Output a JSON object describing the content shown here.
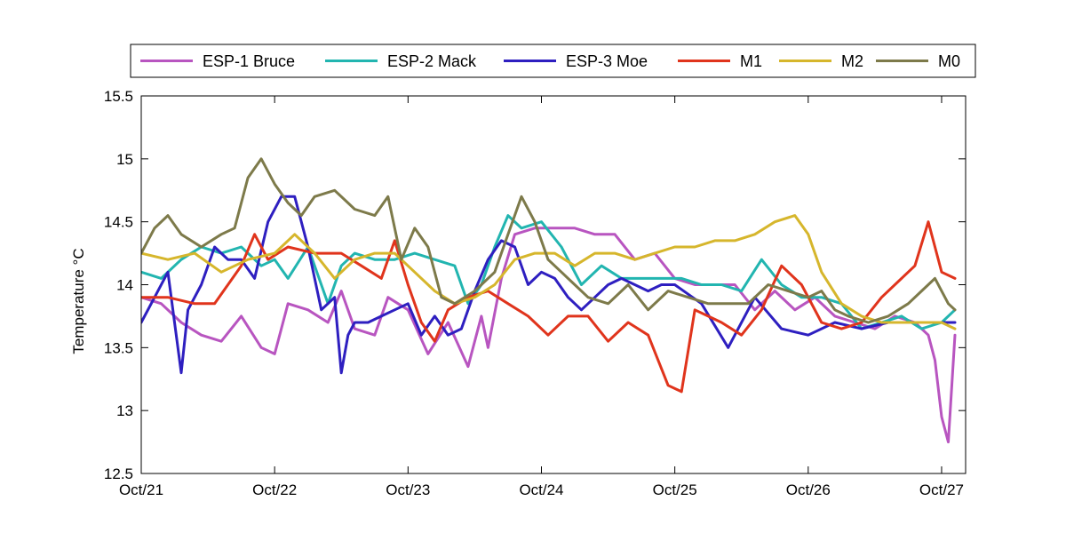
{
  "chart_data": {
    "type": "line",
    "title": "",
    "xlabel": "",
    "ylabel": "Temperature °C",
    "ylim": [
      12.5,
      15.5
    ],
    "xlim": [
      0,
      6.18
    ],
    "yticks": [
      12.5,
      13,
      13.5,
      14,
      14.5,
      15,
      15.5
    ],
    "ytick_labels": [
      "12.5",
      "13",
      "13.5",
      "14",
      "14.5",
      "15",
      "15.5"
    ],
    "xticks": [
      0,
      1,
      2,
      3,
      4,
      5,
      6
    ],
    "xtick_labels": [
      "Oct/21",
      "Oct/22",
      "Oct/23",
      "Oct/24",
      "Oct/25",
      "Oct/26",
      "Oct/27"
    ],
    "grid": false,
    "legend_position": "top",
    "series": [
      {
        "name": "ESP-1 Bruce",
        "color": "#b855c0",
        "x": [
          0,
          0.15,
          0.3,
          0.45,
          0.6,
          0.75,
          0.9,
          1.0,
          1.1,
          1.25,
          1.4,
          1.5,
          1.6,
          1.75,
          1.85,
          2.0,
          2.15,
          2.3,
          2.45,
          2.55,
          2.6,
          2.7,
          2.8,
          2.95,
          3.1,
          3.25,
          3.4,
          3.55,
          3.7,
          3.85,
          4.0,
          4.15,
          4.3,
          4.45,
          4.6,
          4.75,
          4.9,
          5.05,
          5.2,
          5.35,
          5.5,
          5.65,
          5.8,
          5.9,
          5.95,
          6.0,
          6.05,
          6.1
        ],
        "y": [
          13.9,
          13.85,
          13.7,
          13.6,
          13.55,
          13.75,
          13.5,
          13.45,
          13.85,
          13.8,
          13.7,
          13.95,
          13.65,
          13.6,
          13.9,
          13.8,
          13.45,
          13.7,
          13.35,
          13.75,
          13.5,
          14.05,
          14.4,
          14.45,
          14.45,
          14.45,
          14.4,
          14.4,
          14.2,
          14.25,
          14.05,
          14.0,
          14.0,
          14.0,
          13.8,
          13.95,
          13.8,
          13.9,
          13.75,
          13.7,
          13.65,
          13.75,
          13.7,
          13.6,
          13.4,
          12.95,
          12.75,
          13.6
        ]
      },
      {
        "name": "ESP-2 Mack",
        "color": "#22b5b0",
        "x": [
          0,
          0.15,
          0.3,
          0.45,
          0.6,
          0.75,
          0.9,
          1.0,
          1.1,
          1.25,
          1.4,
          1.5,
          1.6,
          1.75,
          1.9,
          2.05,
          2.2,
          2.35,
          2.45,
          2.55,
          2.65,
          2.75,
          2.85,
          3.0,
          3.15,
          3.3,
          3.45,
          3.6,
          3.75,
          3.9,
          4.05,
          4.2,
          4.35,
          4.5,
          4.65,
          4.8,
          4.95,
          5.1,
          5.25,
          5.4,
          5.55,
          5.7,
          5.85,
          6.0,
          6.1
        ],
        "y": [
          14.1,
          14.05,
          14.2,
          14.3,
          14.25,
          14.3,
          14.15,
          14.2,
          14.05,
          14.3,
          13.85,
          14.15,
          14.25,
          14.2,
          14.2,
          14.25,
          14.2,
          14.15,
          13.85,
          14.0,
          14.3,
          14.55,
          14.45,
          14.5,
          14.3,
          14.0,
          14.15,
          14.05,
          14.05,
          14.05,
          14.05,
          14.0,
          14.0,
          13.95,
          14.2,
          14.0,
          13.9,
          13.9,
          13.85,
          13.65,
          13.7,
          13.75,
          13.65,
          13.7,
          13.8
        ]
      },
      {
        "name": "ESP-3 Moe",
        "color": "#2e1fc0",
        "x": [
          0,
          0.1,
          0.2,
          0.3,
          0.35,
          0.45,
          0.55,
          0.65,
          0.75,
          0.85,
          0.95,
          1.05,
          1.15,
          1.25,
          1.35,
          1.45,
          1.5,
          1.55,
          1.6,
          1.7,
          1.8,
          1.9,
          2.0,
          2.1,
          2.2,
          2.3,
          2.4,
          2.5,
          2.6,
          2.7,
          2.8,
          2.9,
          3.0,
          3.1,
          3.2,
          3.3,
          3.4,
          3.5,
          3.6,
          3.7,
          3.8,
          3.9,
          4.0,
          4.2,
          4.4,
          4.6,
          4.8,
          5.0,
          5.2,
          5.4,
          5.6,
          5.8,
          6.0,
          6.1
        ],
        "y": [
          13.7,
          13.9,
          14.1,
          13.3,
          13.8,
          14.0,
          14.3,
          14.2,
          14.2,
          14.05,
          14.5,
          14.7,
          14.7,
          14.3,
          13.8,
          13.9,
          13.3,
          13.6,
          13.7,
          13.7,
          13.75,
          13.8,
          13.85,
          13.6,
          13.75,
          13.6,
          13.65,
          13.95,
          14.2,
          14.35,
          14.3,
          14.0,
          14.1,
          14.05,
          13.9,
          13.8,
          13.9,
          14.0,
          14.05,
          14.0,
          13.95,
          14.0,
          14.0,
          13.85,
          13.5,
          13.9,
          13.65,
          13.6,
          13.7,
          13.65,
          13.7,
          13.7,
          13.7,
          13.7
        ]
      },
      {
        "name": "M1",
        "color": "#e0341c",
        "x": [
          0,
          0.2,
          0.4,
          0.55,
          0.65,
          0.75,
          0.85,
          0.95,
          1.1,
          1.3,
          1.5,
          1.65,
          1.8,
          1.9,
          2.0,
          2.1,
          2.2,
          2.3,
          2.45,
          2.6,
          2.75,
          2.9,
          3.05,
          3.2,
          3.35,
          3.5,
          3.65,
          3.8,
          3.95,
          4.05,
          4.15,
          4.25,
          4.35,
          4.5,
          4.65,
          4.8,
          4.95,
          5.1,
          5.25,
          5.4,
          5.55,
          5.7,
          5.8,
          5.9,
          6.0,
          6.1
        ],
        "y": [
          13.9,
          13.9,
          13.85,
          13.85,
          14.0,
          14.15,
          14.4,
          14.2,
          14.3,
          14.25,
          14.25,
          14.15,
          14.05,
          14.35,
          14.0,
          13.7,
          13.55,
          13.8,
          13.9,
          13.95,
          13.85,
          13.75,
          13.6,
          13.75,
          13.75,
          13.55,
          13.7,
          13.6,
          13.2,
          13.15,
          13.8,
          13.75,
          13.7,
          13.6,
          13.8,
          14.15,
          14.0,
          13.7,
          13.65,
          13.7,
          13.9,
          14.05,
          14.15,
          14.5,
          14.1,
          14.05
        ]
      },
      {
        "name": "M2",
        "color": "#d6b62c",
        "x": [
          0,
          0.2,
          0.4,
          0.6,
          0.8,
          1.0,
          1.15,
          1.3,
          1.45,
          1.6,
          1.75,
          1.9,
          2.05,
          2.2,
          2.35,
          2.5,
          2.65,
          2.8,
          2.95,
          3.1,
          3.25,
          3.4,
          3.55,
          3.7,
          3.85,
          4.0,
          4.15,
          4.3,
          4.45,
          4.6,
          4.75,
          4.9,
          5.0,
          5.1,
          5.25,
          5.4,
          5.55,
          5.7,
          5.85,
          6.0,
          6.1
        ],
        "y": [
          14.25,
          14.2,
          14.25,
          14.1,
          14.2,
          14.25,
          14.4,
          14.25,
          14.05,
          14.2,
          14.25,
          14.25,
          14.1,
          13.95,
          13.85,
          13.9,
          14.0,
          14.2,
          14.25,
          14.25,
          14.15,
          14.25,
          14.25,
          14.2,
          14.25,
          14.3,
          14.3,
          14.35,
          14.35,
          14.4,
          14.5,
          14.55,
          14.4,
          14.1,
          13.85,
          13.75,
          13.7,
          13.7,
          13.7,
          13.7,
          13.65
        ]
      },
      {
        "name": "M0",
        "color": "#7d7a4a",
        "x": [
          0,
          0.1,
          0.2,
          0.3,
          0.45,
          0.6,
          0.7,
          0.8,
          0.9,
          1.0,
          1.1,
          1.2,
          1.3,
          1.45,
          1.6,
          1.75,
          1.85,
          1.95,
          2.05,
          2.15,
          2.25,
          2.35,
          2.5,
          2.65,
          2.75,
          2.85,
          2.95,
          3.05,
          3.15,
          3.25,
          3.35,
          3.5,
          3.65,
          3.8,
          3.95,
          4.1,
          4.25,
          4.4,
          4.55,
          4.7,
          4.85,
          5.0,
          5.1,
          5.2,
          5.3,
          5.45,
          5.6,
          5.75,
          5.85,
          5.95,
          6.05,
          6.1
        ],
        "y": [
          14.25,
          14.45,
          14.55,
          14.4,
          14.3,
          14.4,
          14.45,
          14.85,
          15.0,
          14.8,
          14.65,
          14.55,
          14.7,
          14.75,
          14.6,
          14.55,
          14.7,
          14.2,
          14.45,
          14.3,
          13.9,
          13.85,
          13.95,
          14.1,
          14.4,
          14.7,
          14.5,
          14.2,
          14.1,
          14.0,
          13.9,
          13.85,
          14.0,
          13.8,
          13.95,
          13.9,
          13.85,
          13.85,
          13.85,
          14.0,
          13.95,
          13.9,
          13.95,
          13.8,
          13.75,
          13.7,
          13.75,
          13.85,
          13.95,
          14.05,
          13.85,
          13.8
        ]
      }
    ]
  }
}
